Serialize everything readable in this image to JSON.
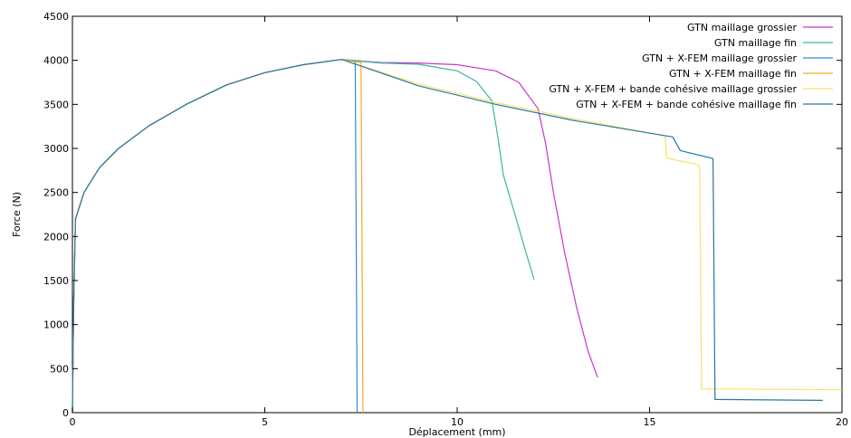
{
  "chart_data": {
    "type": "line",
    "title": "",
    "xlabel": "Déplacement (mm)",
    "ylabel": "Force (N)",
    "xlim": [
      0,
      20
    ],
    "ylim": [
      0,
      4500
    ],
    "x_ticks": [
      0,
      5,
      10,
      15,
      20
    ],
    "y_ticks": [
      0,
      500,
      1000,
      1500,
      2000,
      2500,
      3000,
      3500,
      4000,
      4500
    ],
    "grid": false,
    "legend_position": "top-right",
    "series": [
      {
        "name": "GTN  maillage grossier",
        "color": "#c837c8",
        "points": [
          [
            0,
            0
          ],
          [
            0.03,
            1200
          ],
          [
            0.08,
            2200
          ],
          [
            0.3,
            2500
          ],
          [
            0.7,
            2780
          ],
          [
            1.2,
            3000
          ],
          [
            2,
            3260
          ],
          [
            3,
            3510
          ],
          [
            4,
            3720
          ],
          [
            5,
            3860
          ],
          [
            6,
            3950
          ],
          [
            7,
            4010
          ],
          [
            8,
            3975
          ],
          [
            9,
            3970
          ],
          [
            10,
            3950
          ],
          [
            11,
            3880
          ],
          [
            11.6,
            3750
          ],
          [
            12.1,
            3450
          ],
          [
            12.3,
            3050
          ],
          [
            12.5,
            2500
          ],
          [
            12.8,
            1800
          ],
          [
            13.1,
            1200
          ],
          [
            13.4,
            700
          ],
          [
            13.65,
            400
          ]
        ]
      },
      {
        "name": "GTN  maillage fin",
        "color": "#3cb39e",
        "points": [
          [
            0,
            0
          ],
          [
            0.03,
            1200
          ],
          [
            0.08,
            2200
          ],
          [
            0.3,
            2500
          ],
          [
            0.7,
            2780
          ],
          [
            1.2,
            3000
          ],
          [
            2,
            3260
          ],
          [
            3,
            3510
          ],
          [
            4,
            3720
          ],
          [
            5,
            3860
          ],
          [
            6,
            3950
          ],
          [
            7,
            4010
          ],
          [
            8,
            3970
          ],
          [
            9,
            3955
          ],
          [
            10,
            3880
          ],
          [
            10.5,
            3760
          ],
          [
            10.9,
            3540
          ],
          [
            11.05,
            3150
          ],
          [
            11.2,
            2700
          ],
          [
            11.5,
            2250
          ],
          [
            11.8,
            1800
          ],
          [
            12.0,
            1510
          ]
        ]
      },
      {
        "name": "GTN + X-FEM  maillage grossier",
        "color": "#2f8fc6",
        "points": [
          [
            0,
            0
          ],
          [
            0.03,
            1200
          ],
          [
            0.08,
            2200
          ],
          [
            0.3,
            2500
          ],
          [
            0.7,
            2780
          ],
          [
            1.2,
            3000
          ],
          [
            2,
            3260
          ],
          [
            3,
            3510
          ],
          [
            4,
            3720
          ],
          [
            5,
            3860
          ],
          [
            6,
            3950
          ],
          [
            7,
            4010
          ],
          [
            7.35,
            3990
          ],
          [
            7.4,
            0
          ]
        ]
      },
      {
        "name": "GTN + X-FEM  maillage fin",
        "color": "#f2aa22",
        "points": [
          [
            0,
            0
          ],
          [
            0.03,
            1200
          ],
          [
            0.08,
            2200
          ],
          [
            0.3,
            2500
          ],
          [
            0.7,
            2780
          ],
          [
            1.2,
            3000
          ],
          [
            2,
            3260
          ],
          [
            3,
            3510
          ],
          [
            4,
            3720
          ],
          [
            5,
            3860
          ],
          [
            6,
            3950
          ],
          [
            7,
            4010
          ],
          [
            7.5,
            3975
          ],
          [
            7.55,
            0
          ]
        ]
      },
      {
        "name": "GTN + X-FEM + bande cohésive  maillage grossier",
        "color": "#f5e36a",
        "points": [
          [
            0,
            0
          ],
          [
            0.03,
            1200
          ],
          [
            0.08,
            2200
          ],
          [
            0.3,
            2500
          ],
          [
            0.7,
            2780
          ],
          [
            1.2,
            3000
          ],
          [
            2,
            3260
          ],
          [
            3,
            3510
          ],
          [
            4,
            3720
          ],
          [
            5,
            3860
          ],
          [
            6,
            3950
          ],
          [
            7,
            4010
          ],
          [
            9,
            3730
          ],
          [
            11,
            3520
          ],
          [
            13,
            3340
          ],
          [
            15.4,
            3140
          ],
          [
            15.45,
            2890
          ],
          [
            16.2,
            2820
          ],
          [
            16.3,
            2800
          ],
          [
            16.35,
            270
          ],
          [
            20,
            260
          ]
        ]
      },
      {
        "name": "GTN + X-FEM + bande cohésive  maillage fin",
        "color": "#2576a8",
        "points": [
          [
            0,
            0
          ],
          [
            0.03,
            1200
          ],
          [
            0.08,
            2200
          ],
          [
            0.3,
            2500
          ],
          [
            0.7,
            2780
          ],
          [
            1.2,
            3000
          ],
          [
            2,
            3260
          ],
          [
            3,
            3510
          ],
          [
            4,
            3720
          ],
          [
            5,
            3860
          ],
          [
            6,
            3950
          ],
          [
            7,
            4010
          ],
          [
            9,
            3710
          ],
          [
            11,
            3500
          ],
          [
            13,
            3320
          ],
          [
            15.6,
            3130
          ],
          [
            15.8,
            2975
          ],
          [
            16.65,
            2885
          ],
          [
            16.7,
            150
          ],
          [
            19.5,
            140
          ]
        ]
      }
    ]
  }
}
